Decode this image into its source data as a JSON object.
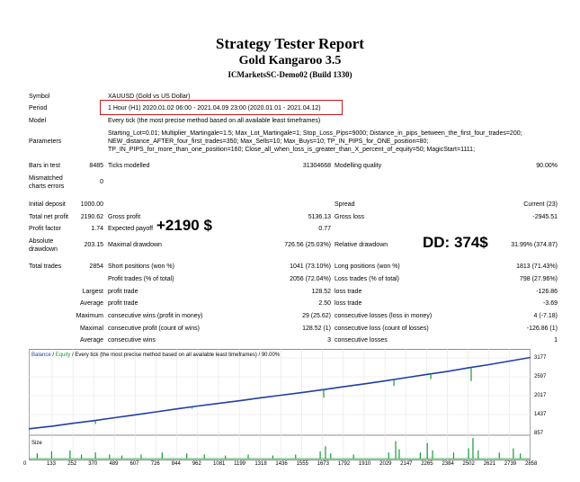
{
  "header": {
    "title": "Strategy Tester Report",
    "ea_name": "Gold Kangaroo 3.5",
    "server": "ICMarketsSC-Demo02 (Build 1330)"
  },
  "settings": {
    "symbol_label": "Symbol",
    "symbol": "XAUUSD (Gold vs US Dollar)",
    "period_label": "Period",
    "period": "1 Hour (H1) 2020.01.02 06:00 - 2021.04.09 23:00 (2020.01.01 - 2021.04.12)",
    "model_label": "Model",
    "model": "Every tick (the most precise method based on all available least timeframes)",
    "parameters_label": "Parameters",
    "parameters": [
      "Starting_Lot=0.01; Multiplier_Martingale=1.5; Max_Lot_Martingale=1; Stop_Loss_Pips=9000; Distance_in_pips_between_the_first_four_trades=200;",
      "NEW_distance_AFTER_four_first_trades=350; Max_Sells=10; Max_Buys=10; TP_IN_PIPS_for_ONE_position=80;",
      "TP_IN_PIPS_for_more_than_one_position=160; Close_all_when_loss_is_greater_than_X_percent_of_equity=50; MagicStart=1111;"
    ],
    "bars_label": "Bars in test",
    "bars": "8485",
    "ticks_label": "Ticks modelled",
    "ticks": "31304668",
    "quality_label": "Modelling quality",
    "quality": "90.00%",
    "mismatched_label_1": "Mismatched",
    "mismatched_label_2": "charts errors",
    "mismatched": "0"
  },
  "results": {
    "initial_deposit_label": "Initial deposit",
    "initial_deposit": "1000.00",
    "spread_label": "Spread",
    "spread": "Current (23)",
    "net_profit_label": "Total net profit",
    "net_profit": "2190.62",
    "gross_profit_label": "Gross profit",
    "gross_profit": "5136.13",
    "gross_loss_label": "Gross loss",
    "gross_loss": "-2945.51",
    "profit_factor_label": "Profit factor",
    "profit_factor": "1.74",
    "expected_payoff_label": "Expected payoff",
    "expected_payoff": "0.77",
    "abs_dd_label_1": "Absolute",
    "abs_dd_label_2": "drawdown",
    "abs_dd": "203.15",
    "max_dd_label": "Maximal drawdown",
    "max_dd": "726.56 (25.03%)",
    "rel_dd_label": "Relative drawdown",
    "rel_dd": "31.99% (374.87)",
    "total_trades_label": "Total trades",
    "total_trades": "2854",
    "short_label": "Short positions (won %)",
    "short": "1041 (73.10%)",
    "long_label": "Long positions (won %)",
    "long": "1813 (71.43%)",
    "profit_trades_label": "Profit trades (% of total)",
    "profit_trades": "2056 (72.04%)",
    "loss_trades_label": "Loss trades (% of total)",
    "loss_trades": "798 (27.96%)",
    "largest_label": "Largest",
    "largest_profit_label": "profit trade",
    "largest_profit": "128.52",
    "largest_loss_label": "loss trade",
    "largest_loss": "-126.86",
    "average_label": "Average",
    "average_profit_label": "profit trade",
    "average_profit": "2.50",
    "average_loss_label": "loss trade",
    "average_loss": "-3.69",
    "maximum_label": "Maximum",
    "max_cons_wins_label": "consecutive wins (profit in money)",
    "max_cons_wins": "29 (25.62)",
    "max_cons_losses_label": "consecutive losses (loss in money)",
    "max_cons_losses": "4 (-7.18)",
    "maximal_label": "Maximal",
    "maximal_cons_profit_label": "consecutive profit (count of wins)",
    "maximal_cons_profit": "128.52 (1)",
    "maximal_cons_loss_label": "consecutive loss (count of losses)",
    "maximal_cons_loss": "-126.86 (1)",
    "average2_label": "Average",
    "avg_cons_wins_label": "consecutive wins",
    "avg_cons_wins": "3",
    "avg_cons_losses_label": "consecutive losses",
    "avg_cons_losses": "1"
  },
  "annotations": {
    "profit": "+2190 $",
    "drawdown": "DD: 374$"
  },
  "colors": {
    "balance": "#1f3fa8",
    "equity": "#1a9a36",
    "highlight_box": "#c8181e"
  },
  "chart_data": {
    "type": "line",
    "legend_balance": "Balance",
    "legend_sep": " / ",
    "legend_equity": "Equity",
    "legend_rest": " / Every tick (the most precise method based on all available least timeframes) / 90.00%",
    "size_label": "Size",
    "y_ticks": [
      3177,
      2597,
      2017,
      1437,
      857
    ],
    "ylim": [
      857,
      3177
    ],
    "x_ticks": [
      0,
      133,
      252,
      370,
      489,
      607,
      726,
      844,
      962,
      1081,
      1199,
      1318,
      1436,
      1555,
      1673,
      1792,
      1910,
      2029,
      2147,
      2265,
      2384,
      2502,
      2621,
      2739,
      2858
    ],
    "xlim": [
      0,
      2858
    ],
    "series": [
      {
        "name": "Balance",
        "x": [
          0,
          133,
          252,
          370,
          489,
          607,
          726,
          844,
          962,
          1081,
          1199,
          1318,
          1436,
          1555,
          1673,
          1792,
          1910,
          2029,
          2147,
          2265,
          2384,
          2502,
          2621,
          2739,
          2858
        ],
        "values": [
          1000,
          1080,
          1170,
          1250,
          1340,
          1430,
          1520,
          1610,
          1700,
          1780,
          1860,
          1950,
          2030,
          2110,
          2200,
          2290,
          2380,
          2470,
          2570,
          2670,
          2760,
          2870,
          2970,
          3080,
          3190
        ]
      },
      {
        "name": "Equity",
        "dips": [
          [
            380,
            110
          ],
          [
            930,
            60
          ],
          [
            1680,
            250
          ],
          [
            2080,
            200
          ],
          [
            2290,
            160
          ],
          [
            2520,
            420
          ]
        ]
      }
    ],
    "size_spikes": [
      [
        48,
        0.25
      ],
      [
        130,
        0.35
      ],
      [
        235,
        0.4
      ],
      [
        300,
        0.2
      ],
      [
        380,
        0.3
      ],
      [
        460,
        0.2
      ],
      [
        530,
        0.15
      ],
      [
        640,
        0.2
      ],
      [
        760,
        0.3
      ],
      [
        900,
        0.25
      ],
      [
        1000,
        0.2
      ],
      [
        1120,
        0.15
      ],
      [
        1250,
        0.2
      ],
      [
        1390,
        0.15
      ],
      [
        1520,
        0.2
      ],
      [
        1660,
        0.35
      ],
      [
        1690,
        0.6
      ],
      [
        1720,
        0.25
      ],
      [
        1850,
        0.2
      ],
      [
        2050,
        0.3
      ],
      [
        2090,
        0.85
      ],
      [
        2110,
        0.45
      ],
      [
        2230,
        0.3
      ],
      [
        2270,
        0.75
      ],
      [
        2300,
        0.4
      ],
      [
        2420,
        0.3
      ],
      [
        2505,
        0.5
      ],
      [
        2530,
        1.0
      ],
      [
        2560,
        0.4
      ],
      [
        2680,
        0.3
      ],
      [
        2760,
        0.5
      ],
      [
        2800,
        0.25
      ]
    ]
  }
}
